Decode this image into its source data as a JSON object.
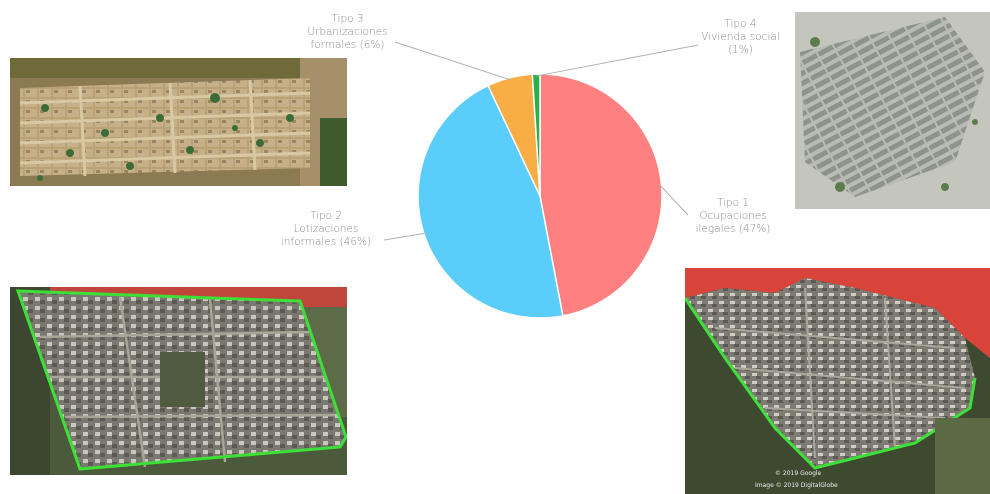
{
  "chart_data": {
    "type": "pie",
    "slices": [
      {
        "label_lines": [
          "Tipo 1",
          "Ocupaciones",
          "ilegales  (47%)"
        ],
        "value": 47,
        "color": "#ff8080"
      },
      {
        "label_lines": [
          "Tipo 2",
          "Lotizaciones",
          "informales (46%)"
        ],
        "value": 46,
        "color": "#5bcdfa"
      },
      {
        "label_lines": [
          "Tipo 3",
          "Urbanizaciones",
          "formales (6%)"
        ],
        "value": 6,
        "color": "#f9ae45"
      },
      {
        "label_lines": [
          "Tipo 4",
          "Vivienda social",
          "(1%)"
        ],
        "value": 1,
        "color": "#2aaf4a"
      }
    ]
  },
  "photos": {
    "map_credit_1": "© 2019 Google",
    "map_credit_2": "Image © 2019 DigitalGlobe"
  },
  "colors": {
    "boundary_green": "#3ee038",
    "zone_red": "#e23b2e",
    "label_gray": "#8a8a8a",
    "leader_gray": "#b0b0b0"
  }
}
